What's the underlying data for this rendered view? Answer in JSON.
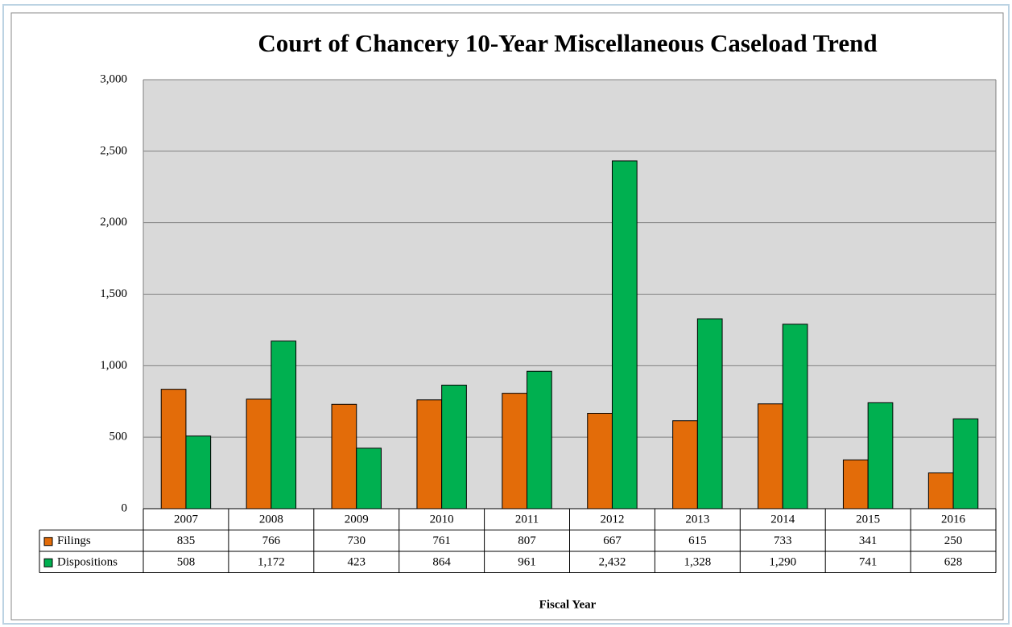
{
  "chart_data": {
    "type": "bar",
    "title": "Court of Chancery 10-Year Miscellaneous Caseload Trend",
    "x_label": "Fiscal Year",
    "categories": [
      "2007",
      "2008",
      "2009",
      "2010",
      "2011",
      "2012",
      "2013",
      "2014",
      "2015",
      "2016"
    ],
    "series": [
      {
        "name": "Filings",
        "color": "#e36c09",
        "values": [
          835,
          766,
          730,
          761,
          807,
          667,
          615,
          733,
          341,
          250
        ]
      },
      {
        "name": "Dispositions",
        "color": "#00b050",
        "values": [
          508,
          1172,
          423,
          864,
          961,
          2432,
          1328,
          1290,
          741,
          628
        ],
        "value_labels": [
          "508",
          "1,172",
          "423",
          "864",
          "961",
          "2,432",
          "1,328",
          "1,290",
          "741",
          "628"
        ]
      }
    ],
    "ylim": [
      0,
      3000
    ],
    "yticks": [
      0,
      500,
      {
        "value": 1000,
        "label": "1,000"
      },
      {
        "value": 1500,
        "label": "1,500"
      },
      {
        "value": 2000,
        "label": "2,000"
      },
      {
        "value": 2500,
        "label": "2,500"
      },
      {
        "value": 3000,
        "label": "3,000"
      }
    ],
    "grid": true,
    "data_table": true
  }
}
